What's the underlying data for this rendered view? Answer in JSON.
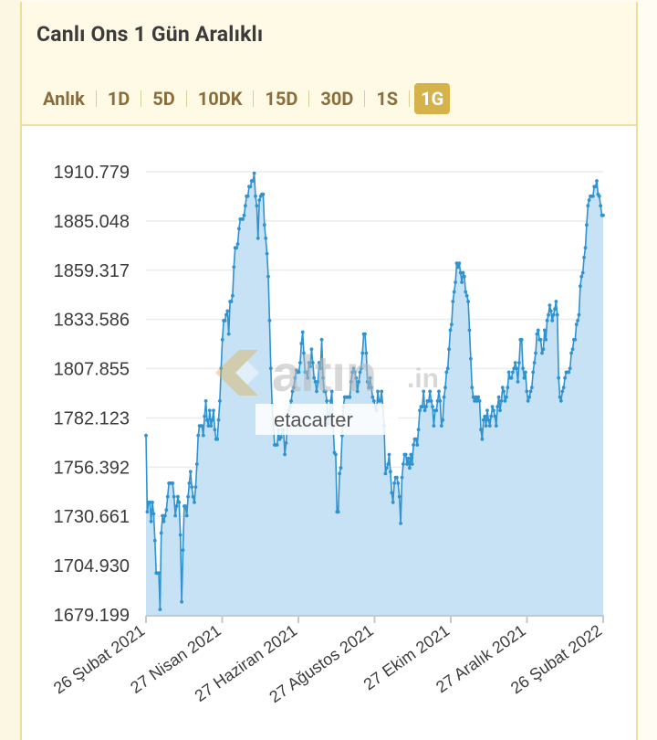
{
  "card": {
    "title": "Canlı Ons 1 Gün Aralıklı"
  },
  "tabs": [
    {
      "label": "Anlık",
      "active": false
    },
    {
      "label": "1D",
      "active": false
    },
    {
      "label": "5D",
      "active": false
    },
    {
      "label": "10DK",
      "active": false
    },
    {
      "label": "15D",
      "active": false
    },
    {
      "label": "30D",
      "active": false
    },
    {
      "label": "1S",
      "active": false
    },
    {
      "label": "1G",
      "active": true
    }
  ],
  "colors": {
    "line": "#2f93d1",
    "area": "#c4e0f4",
    "active_tab": "#d5b34a",
    "card_border": "#ecdf9c",
    "header_bg": "#fefae6"
  },
  "watermark": {
    "brand": "altın",
    "suffix": ".in",
    "user": "etacarter"
  },
  "chart_data": {
    "type": "area",
    "title": "",
    "xlabel": "",
    "ylabel": "",
    "y_ticks": [
      "1910.779",
      "1885.048",
      "1859.317",
      "1833.586",
      "1807.855",
      "1782.123",
      "1756.392",
      "1730.661",
      "1704.930",
      "1679.199"
    ],
    "ylim": [
      1679.199,
      1910.779
    ],
    "x_ticks": [
      "26 Şubat 2021",
      "27 Nisan 2021",
      "27 Haziran 2021",
      "27 Ağustos 2021",
      "27 Ekim 2021",
      "27 Aralık 2021",
      "26 Şubat 2022"
    ],
    "x_range": [
      "2021-02-26",
      "2022-02-26"
    ],
    "grid": true,
    "legend": "none",
    "series": [
      {
        "values": [
          1773,
          1733,
          1738,
          1738,
          1728,
          1738,
          1732,
          1718,
          1701,
          1701,
          1701,
          1682,
          1722,
          1731,
          1728,
          1731,
          1734,
          1741,
          1748,
          1748,
          1748,
          1748,
          1741,
          1731,
          1736,
          1741,
          1738,
          1721,
          1686,
          1713,
          1736,
          1736,
          1731,
          1741,
          1748,
          1754,
          1746,
          1741,
          1738,
          1746,
          1758,
          1773,
          1778,
          1778,
          1778,
          1773,
          1783,
          1791,
          1781,
          1778,
          1786,
          1778,
          1781,
          1786,
          1776,
          1771,
          1771,
          1781,
          1791,
          1808,
          1823,
          1833,
          1833,
          1836,
          1838,
          1826,
          1843,
          1843,
          1846,
          1861,
          1871,
          1871,
          1873,
          1881,
          1886,
          1886,
          1886,
          1888,
          1893,
          1898,
          1898,
          1903,
          1903,
          1906,
          1906,
          1910,
          1898,
          1893,
          1876,
          1896,
          1898,
          1899,
          1899,
          1883,
          1876,
          1868,
          1856,
          1833,
          1808,
          1789,
          1779,
          1768,
          1768,
          1768,
          1776,
          1771,
          1772,
          1776,
          1776,
          1763,
          1769,
          1778,
          1786,
          1788,
          1791,
          1796,
          1798,
          1803,
          1807,
          1806,
          1806,
          1811,
          1821,
          1827,
          1816,
          1806,
          1806,
          1803,
          1811,
          1809,
          1818,
          1811,
          1803,
          1801,
          1796,
          1801,
          1811,
          1808,
          1823,
          1803,
          1796,
          1796,
          1791,
          1779,
          1784,
          1791,
          1796,
          1778,
          1764,
          1763,
          1733,
          1733,
          1753,
          1756,
          1773,
          1788,
          1793,
          1793,
          1793,
          1793,
          1793,
          1801,
          1806,
          1808,
          1806,
          1803,
          1796,
          1801,
          1806,
          1808,
          1816,
          1826,
          1826,
          1816,
          1801,
          1798,
          1803,
          1798,
          1793,
          1791,
          1788,
          1786,
          1796,
          1791,
          1791,
          1796,
          1788,
          1778,
          1753,
          1756,
          1758,
          1763,
          1754,
          1743,
          1738,
          1748,
          1751,
          1751,
          1748,
          1741,
          1727,
          1751,
          1758,
          1763,
          1763,
          1758,
          1761,
          1756,
          1763,
          1758,
          1768,
          1771,
          1771,
          1768,
          1776,
          1786,
          1788,
          1788,
          1796,
          1786,
          1788,
          1791,
          1791,
          1796,
          1791,
          1788,
          1778,
          1786,
          1786,
          1791,
          1796,
          1791,
          1778,
          1781,
          1793,
          1798,
          1806,
          1808,
          1818,
          1828,
          1831,
          1843,
          1848,
          1853,
          1863,
          1861,
          1863,
          1858,
          1853,
          1858,
          1856,
          1848,
          1846,
          1843,
          1828,
          1813,
          1798,
          1793,
          1791,
          1793,
          1791,
          1793,
          1791,
          1776,
          1771,
          1781,
          1783,
          1778,
          1786,
          1781,
          1778,
          1783,
          1788,
          1786,
          1783,
          1778,
          1788,
          1793,
          1786,
          1791,
          1798,
          1796,
          1791,
          1793,
          1798,
          1806,
          1803,
          1803,
          1806,
          1808,
          1811,
          1808,
          1801,
          1811,
          1823,
          1823,
          1808,
          1803,
          1806,
          1796,
          1791,
          1793,
          1796,
          1798,
          1806,
          1811,
          1816,
          1826,
          1828,
          1823,
          1823,
          1816,
          1818,
          1828,
          1823,
          1833,
          1836,
          1841,
          1838,
          1833,
          1836,
          1839,
          1843,
          1836,
          1803,
          1793,
          1791,
          1796,
          1798,
          1803,
          1806,
          1806,
          1806,
          1808,
          1816,
          1818,
          1823,
          1823,
          1831,
          1833,
          1836,
          1851,
          1856,
          1858,
          1866,
          1871,
          1883,
          1893,
          1896,
          1898,
          1898,
          1898,
          1903,
          1903,
          1906,
          1899,
          1898,
          1893,
          1888,
          1888
        ]
      }
    ]
  }
}
